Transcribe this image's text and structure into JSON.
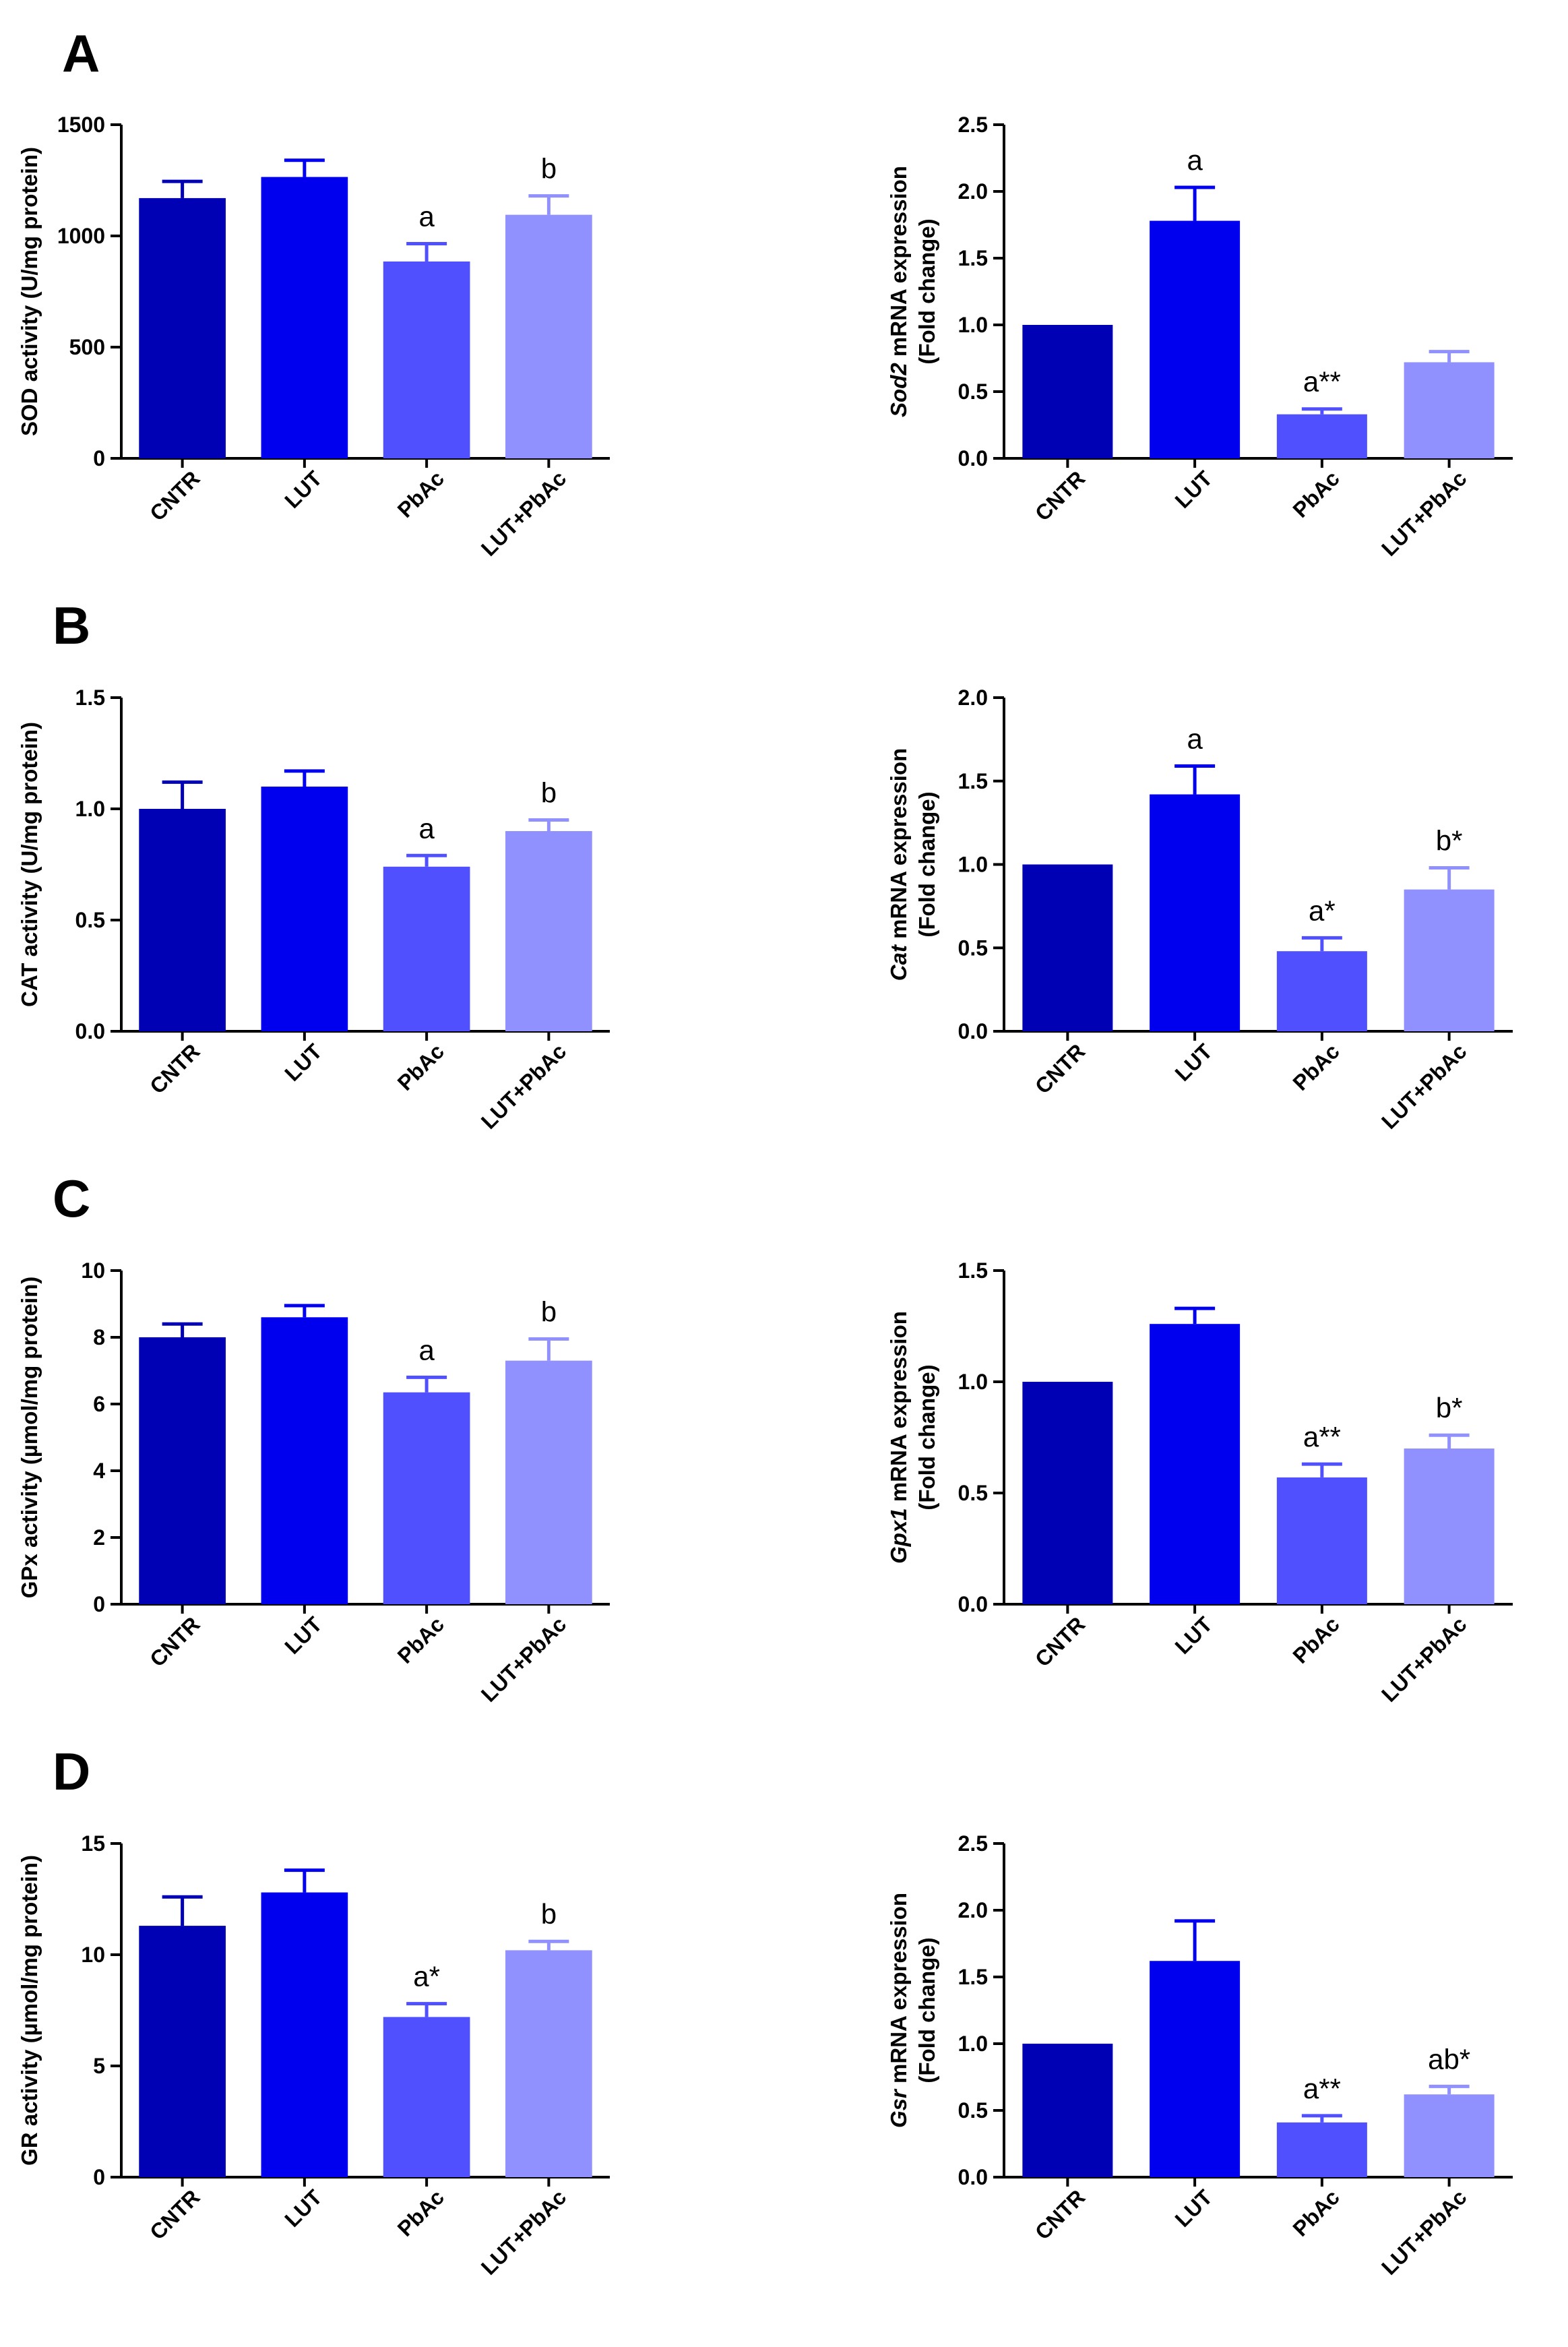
{
  "figure": {
    "panel_labels": [
      "A",
      "B",
      "C",
      "D"
    ],
    "bar_colors": [
      "#0000b4",
      "#0000ef",
      "#5050ff",
      "#9090ff"
    ],
    "axis_color": "#000000"
  },
  "chart_data": [
    {
      "panel": "A",
      "type": "bar",
      "categories": [
        "CNTR",
        "LUT",
        "PbAc",
        "LUT+PbAc"
      ],
      "values": [
        1170,
        1265,
        885,
        1095
      ],
      "errors": [
        75,
        75,
        80,
        85
      ],
      "annotations": [
        "",
        "",
        "a",
        "b"
      ],
      "ylabel": [
        "SOD activity (U/mg protein)"
      ],
      "ylabel_italic": "",
      "ylim": [
        0,
        1500
      ],
      "yticks": [
        "0",
        "500",
        "1000",
        "1500"
      ]
    },
    {
      "panel": "A",
      "type": "bar",
      "categories": [
        "CNTR",
        "LUT",
        "PbAc",
        "LUT+PbAc"
      ],
      "values": [
        1.0,
        1.78,
        0.33,
        0.72
      ],
      "errors": [
        0,
        0.25,
        0.04,
        0.08
      ],
      "annotations": [
        "",
        "a",
        "a**",
        ""
      ],
      "ylabel": [
        " mRNA expression",
        "(Fold change)"
      ],
      "ylabel_italic": "Sod2",
      "ylim": [
        0,
        2.5
      ],
      "yticks": [
        "0.0",
        "0.5",
        "1.0",
        "1.5",
        "2.0",
        "2.5"
      ]
    },
    {
      "panel": "B",
      "type": "bar",
      "categories": [
        "CNTR",
        "LUT",
        "PbAc",
        "LUT+PbAc"
      ],
      "values": [
        1.0,
        1.1,
        0.74,
        0.9
      ],
      "errors": [
        0.12,
        0.07,
        0.05,
        0.05
      ],
      "annotations": [
        "",
        "",
        "a",
        "b"
      ],
      "ylabel": [
        "CAT activity (U/mg protein)"
      ],
      "ylabel_italic": "",
      "ylim": [
        0,
        1.5
      ],
      "yticks": [
        "0.0",
        "0.5",
        "1.0",
        "1.5"
      ]
    },
    {
      "panel": "B",
      "type": "bar",
      "categories": [
        "CNTR",
        "LUT",
        "PbAc",
        "LUT+PbAc"
      ],
      "values": [
        1.0,
        1.42,
        0.48,
        0.85
      ],
      "errors": [
        0,
        0.17,
        0.08,
        0.13
      ],
      "annotations": [
        "",
        "a",
        "a*",
        "b*"
      ],
      "ylabel": [
        " mRNA expression",
        "(Fold change)"
      ],
      "ylabel_italic": "Cat",
      "ylim": [
        0,
        2.0
      ],
      "yticks": [
        "0.0",
        "0.5",
        "1.0",
        "1.5",
        "2.0"
      ]
    },
    {
      "panel": "C",
      "type": "bar",
      "categories": [
        "CNTR",
        "LUT",
        "PbAc",
        "LUT+PbAc"
      ],
      "values": [
        8.0,
        8.6,
        6.35,
        7.3
      ],
      "errors": [
        0.4,
        0.35,
        0.45,
        0.65
      ],
      "annotations": [
        "",
        "",
        "a",
        "b"
      ],
      "ylabel": [
        "GPx activity (µmol/mg protein)"
      ],
      "ylabel_italic": "",
      "ylim": [
        0,
        10
      ],
      "yticks": [
        "0",
        "2",
        "4",
        "6",
        "8",
        "10"
      ]
    },
    {
      "panel": "C",
      "type": "bar",
      "categories": [
        "CNTR",
        "LUT",
        "PbAc",
        "LUT+PbAc"
      ],
      "values": [
        1.0,
        1.26,
        0.57,
        0.7
      ],
      "errors": [
        0,
        0.07,
        0.06,
        0.06
      ],
      "annotations": [
        "",
        "",
        "a**",
        "b*"
      ],
      "ylabel": [
        " mRNA expression",
        "(Fold change)"
      ],
      "ylabel_italic": "Gpx1",
      "ylim": [
        0,
        1.5
      ],
      "yticks": [
        "0.0",
        "0.5",
        "1.0",
        "1.5"
      ]
    },
    {
      "panel": "D",
      "type": "bar",
      "categories": [
        "CNTR",
        "LUT",
        "PbAc",
        "LUT+PbAc"
      ],
      "values": [
        11.3,
        12.8,
        7.2,
        10.2
      ],
      "errors": [
        1.3,
        1.0,
        0.6,
        0.4
      ],
      "annotations": [
        "",
        "",
        "a*",
        "b"
      ],
      "ylabel": [
        "GR activity (µmol/mg protein)"
      ],
      "ylabel_italic": "",
      "ylim": [
        0,
        15
      ],
      "yticks": [
        "0",
        "5",
        "10",
        "15"
      ]
    },
    {
      "panel": "D",
      "type": "bar",
      "categories": [
        "CNTR",
        "LUT",
        "PbAc",
        "LUT+PbAc"
      ],
      "values": [
        1.0,
        1.62,
        0.41,
        0.62
      ],
      "errors": [
        0,
        0.3,
        0.05,
        0.06
      ],
      "annotations": [
        "",
        "",
        "a**",
        "ab*"
      ],
      "ylabel": [
        " mRNA expression",
        "(Fold change)"
      ],
      "ylabel_italic": "Gsr",
      "ylim": [
        0,
        2.5
      ],
      "yticks": [
        "0.0",
        "0.5",
        "1.0",
        "1.5",
        "2.0",
        "2.5"
      ]
    }
  ]
}
